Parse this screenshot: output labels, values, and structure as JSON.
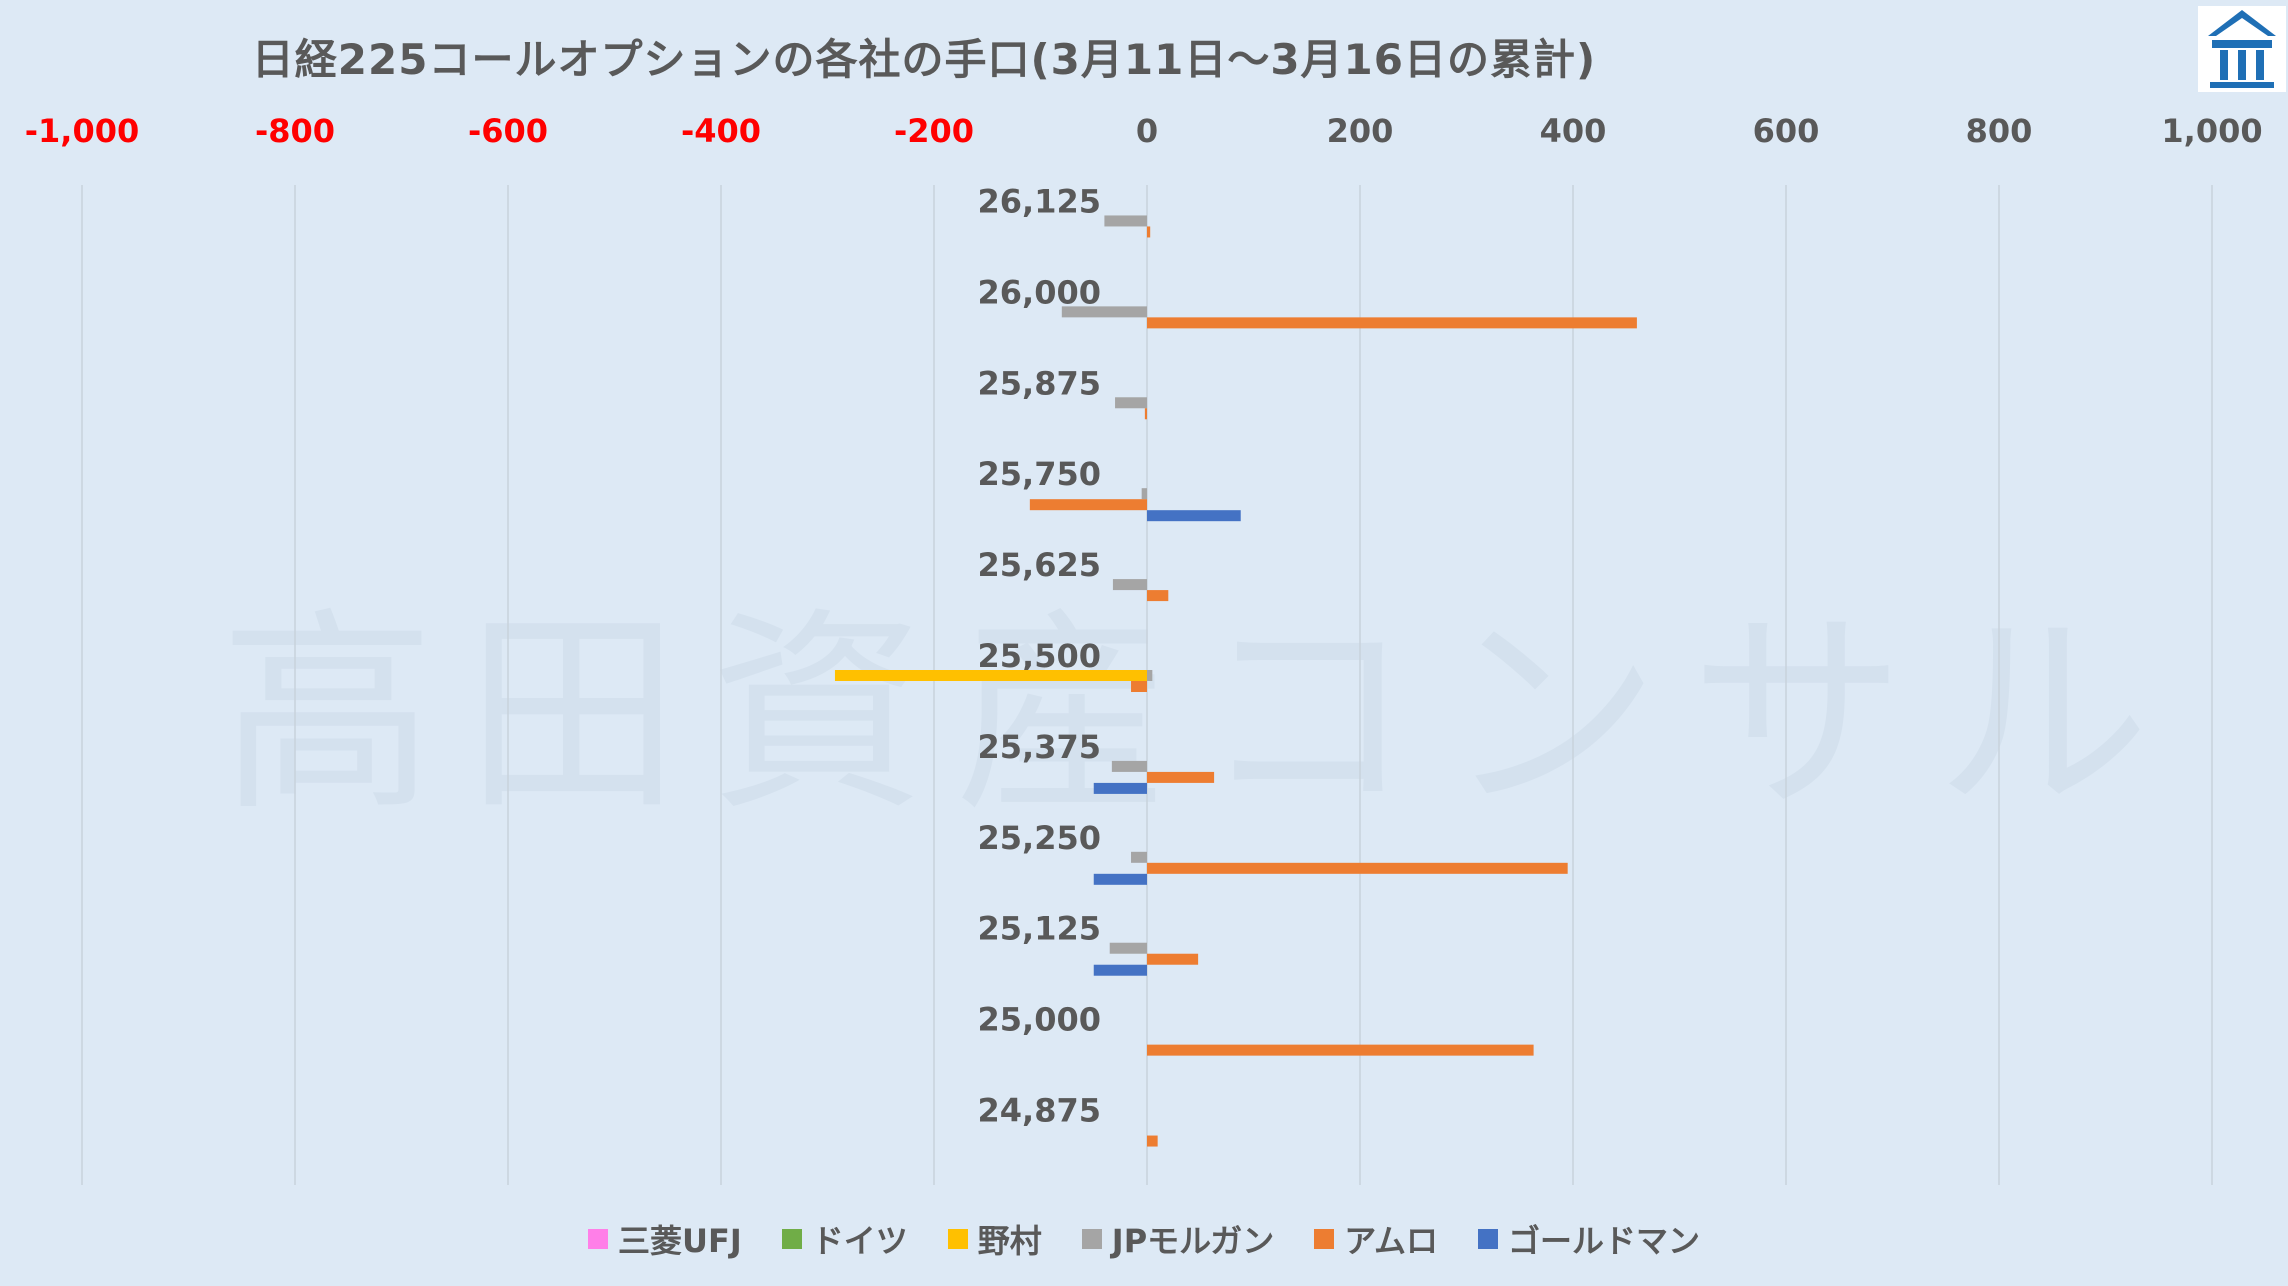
{
  "chart_data": {
    "type": "bar",
    "orientation": "horizontal",
    "title": "日経225コールオプションの各社の手口(3月11日～3月16日の累計)",
    "watermark": "高田資産コンサル",
    "xlim": [
      -1000,
      1000
    ],
    "x_ticks": [
      "-1,000",
      "-800",
      "-600",
      "-400",
      "-200",
      "0",
      "200",
      "400",
      "600",
      "800",
      "1,000"
    ],
    "x_tick_values": [
      -1000,
      -800,
      -600,
      -400,
      -200,
      0,
      200,
      400,
      600,
      800,
      1000
    ],
    "categories": [
      "26,125",
      "26,000",
      "25,875",
      "25,750",
      "25,625",
      "25,500",
      "25,375",
      "25,250",
      "25,125",
      "25,000",
      "24,875"
    ],
    "series": [
      {
        "name": "三菱UFJ",
        "color": "#ff7fe8",
        "values": [
          0,
          0,
          0,
          0,
          0,
          0,
          0,
          0,
          0,
          0,
          0
        ]
      },
      {
        "name": "ドイツ",
        "color": "#70ad47",
        "values": [
          0,
          0,
          0,
          0,
          0,
          0,
          0,
          0,
          0,
          0,
          0
        ]
      },
      {
        "name": "野村",
        "color": "#ffc000",
        "values": [
          0,
          0,
          0,
          0,
          0,
          -293,
          0,
          0,
          0,
          0,
          0
        ]
      },
      {
        "name": "JPモルガン",
        "color": "#a5a5a5",
        "values": [
          -40,
          -80,
          -30,
          -5,
          -32,
          5,
          -33,
          -15,
          -35,
          0,
          0
        ]
      },
      {
        "name": "アムロ",
        "color": "#ed7d31",
        "values": [
          3,
          460,
          -2,
          -110,
          20,
          -15,
          63,
          395,
          48,
          363,
          10
        ]
      },
      {
        "name": "ゴールドマン",
        "color": "#4472c4",
        "values": [
          0,
          0,
          0,
          88,
          0,
          0,
          -50,
          -50,
          -50,
          0,
          0
        ]
      }
    ],
    "grid": true,
    "legend_position": "bottom"
  }
}
